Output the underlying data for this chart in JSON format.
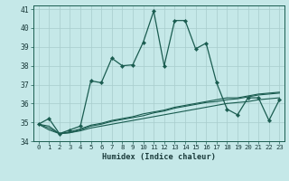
{
  "title": "",
  "xlabel": "Humidex (Indice chaleur)",
  "ylabel": "",
  "background_color": "#c5e8e8",
  "grid_color": "#a8cccc",
  "line_color": "#1a5c50",
  "xlim": [
    -0.5,
    23.5
  ],
  "ylim": [
    34,
    41.2
  ],
  "xticks": [
    0,
    1,
    2,
    3,
    4,
    5,
    6,
    7,
    8,
    9,
    10,
    11,
    12,
    13,
    14,
    15,
    16,
    17,
    18,
    19,
    20,
    21,
    22,
    23
  ],
  "yticks": [
    34,
    35,
    36,
    37,
    38,
    39,
    40,
    41
  ],
  "series_main": [
    34.9,
    35.2,
    34.4,
    34.6,
    34.8,
    37.2,
    37.1,
    38.4,
    38.0,
    38.05,
    39.25,
    40.9,
    38.0,
    40.4,
    40.4,
    38.9,
    39.2,
    37.1,
    35.7,
    35.4,
    36.3,
    36.3,
    35.1,
    36.2
  ],
  "series_linear": [
    [
      34.9,
      34.8,
      34.4,
      34.45,
      34.6,
      34.8,
      34.9,
      35.05,
      35.15,
      35.25,
      35.35,
      35.5,
      35.6,
      35.75,
      35.85,
      35.95,
      36.05,
      36.1,
      36.2,
      36.25,
      36.35,
      36.45,
      36.5,
      36.55
    ],
    [
      34.9,
      34.7,
      34.4,
      34.45,
      34.55,
      34.7,
      34.8,
      34.9,
      35.0,
      35.1,
      35.2,
      35.3,
      35.4,
      35.5,
      35.6,
      35.7,
      35.8,
      35.9,
      36.0,
      36.05,
      36.1,
      36.2,
      36.25,
      36.3
    ],
    [
      34.9,
      34.6,
      34.4,
      34.5,
      34.65,
      34.85,
      34.95,
      35.1,
      35.2,
      35.3,
      35.45,
      35.55,
      35.65,
      35.8,
      35.9,
      36.0,
      36.1,
      36.2,
      36.3,
      36.3,
      36.4,
      36.5,
      36.55,
      36.6
    ]
  ]
}
